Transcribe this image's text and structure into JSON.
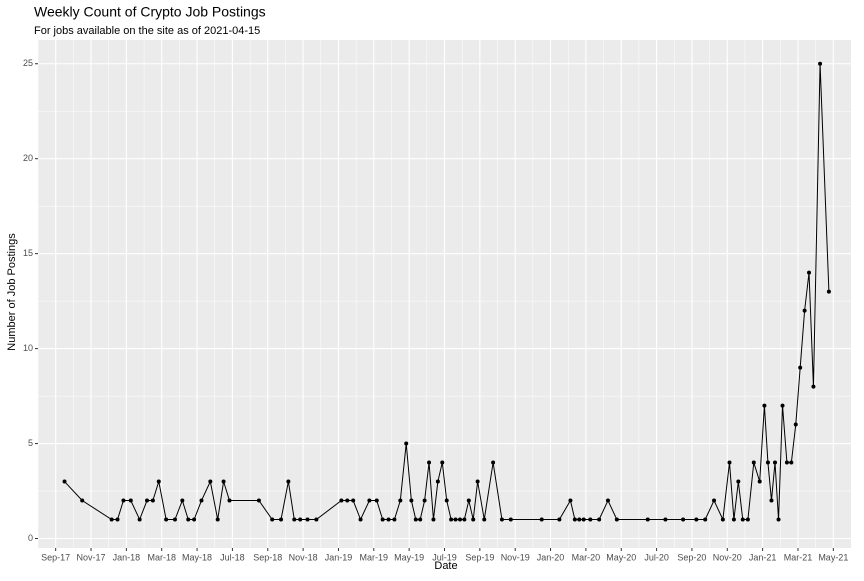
{
  "chart_data": {
    "type": "line",
    "title": "Weekly Count of Crypto Job Postings",
    "subtitle": "For jobs available on the site as of 2021-04-15",
    "x_label": "Date",
    "y_label": "Number of Job Postings",
    "x": [
      "2017-09",
      "2017-10",
      "2017-12",
      "2017-12",
      "2017-12",
      "2018-01",
      "2018-01",
      "2018-02",
      "2018-02",
      "2018-02",
      "2018-03",
      "2018-03",
      "2018-04",
      "2018-04",
      "2018-04",
      "2018-05",
      "2018-05",
      "2018-06",
      "2018-06",
      "2018-06",
      "2018-08",
      "2018-09",
      "2018-09",
      "2018-10",
      "2018-10",
      "2018-10",
      "2018-11",
      "2018-11",
      "2019-01",
      "2019-01",
      "2019-01",
      "2019-02",
      "2019-02",
      "2019-03",
      "2019-03",
      "2019-03",
      "2019-04",
      "2019-04",
      "2019-04",
      "2019-05",
      "2019-05",
      "2019-05",
      "2019-05",
      "2019-06",
      "2019-06",
      "2019-06",
      "2019-06",
      "2019-07",
      "2019-07",
      "2019-07",
      "2019-07",
      "2019-08",
      "2019-08",
      "2019-08",
      "2019-08",
      "2019-09",
      "2019-09",
      "2019-10",
      "2019-10",
      "2019-12",
      "2020-01",
      "2020-02",
      "2020-02",
      "2020-02",
      "2020-02",
      "2020-03",
      "2020-03",
      "2020-04",
      "2020-04",
      "2020-06",
      "2020-07",
      "2020-08",
      "2020-09",
      "2020-09",
      "2020-10",
      "2020-10",
      "2020-11",
      "2020-11",
      "2020-11",
      "2020-11",
      "2020-12",
      "2020-12",
      "2020-12",
      "2021-01",
      "2021-01",
      "2021-01",
      "2021-01",
      "2021-01",
      "2021-02",
      "2021-02",
      "2021-02",
      "2021-02",
      "2021-03",
      "2021-03",
      "2021-03",
      "2021-03",
      "2021-04",
      "2021-04"
    ],
    "series": [
      {
        "name": "Job postings",
        "color": "#000000",
        "values": [
          3,
          2,
          1,
          1,
          2,
          2,
          1,
          2,
          2,
          3,
          1,
          1,
          2,
          1,
          1,
          2,
          3,
          1,
          3,
          2,
          2,
          1,
          1,
          3,
          1,
          1,
          1,
          1,
          2,
          2,
          2,
          1,
          2,
          2,
          1,
          1,
          1,
          2,
          5,
          2,
          1,
          1,
          2,
          4,
          1,
          3,
          4,
          2,
          1,
          1,
          1,
          1,
          2,
          1,
          3,
          1,
          4,
          1,
          1,
          1,
          1,
          2,
          1,
          1,
          1,
          1,
          1,
          2,
          1,
          1,
          1,
          1,
          1,
          1,
          2,
          1,
          4,
          1,
          3,
          1,
          1,
          4,
          3,
          7,
          4,
          2,
          4,
          1,
          7,
          4,
          4,
          6,
          9,
          12,
          14,
          8,
          25,
          13
        ]
      }
    ],
    "xlim": [
      "2017-08",
      "2021-06"
    ],
    "xticks": [
      {
        "value": "2017-09",
        "label": "Sep-17"
      },
      {
        "value": "2017-11",
        "label": "Nov-17"
      },
      {
        "value": "2018-01",
        "label": "Jan-18"
      },
      {
        "value": "2018-03",
        "label": "Mar-18"
      },
      {
        "value": "2018-05",
        "label": "May-18"
      },
      {
        "value": "2018-07",
        "label": "Jul-18"
      },
      {
        "value": "2018-09",
        "label": "Sep-18"
      },
      {
        "value": "2018-11",
        "label": "Nov-18"
      },
      {
        "value": "2019-01",
        "label": "Jan-19"
      },
      {
        "value": "2019-03",
        "label": "Mar-19"
      },
      {
        "value": "2019-05",
        "label": "May-19"
      },
      {
        "value": "2019-07",
        "label": "Jul-19"
      },
      {
        "value": "2019-09",
        "label": "Sep-19"
      },
      {
        "value": "2019-11",
        "label": "Nov-19"
      },
      {
        "value": "2020-01",
        "label": "Jan-20"
      },
      {
        "value": "2020-03",
        "label": "Mar-20"
      },
      {
        "value": "2020-05",
        "label": "May-20"
      },
      {
        "value": "2020-07",
        "label": "Jul-20"
      },
      {
        "value": "2020-09",
        "label": "Sep-20"
      },
      {
        "value": "2020-11",
        "label": "Nov-20"
      },
      {
        "value": "2021-01",
        "label": "Jan-21"
      },
      {
        "value": "2021-03",
        "label": "Mar-21"
      },
      {
        "value": "2021-05",
        "label": "May-21"
      }
    ],
    "ylim": [
      -0.5,
      26.25
    ],
    "yticks": [
      0,
      5,
      10,
      15,
      20,
      25
    ],
    "grid": true
  }
}
